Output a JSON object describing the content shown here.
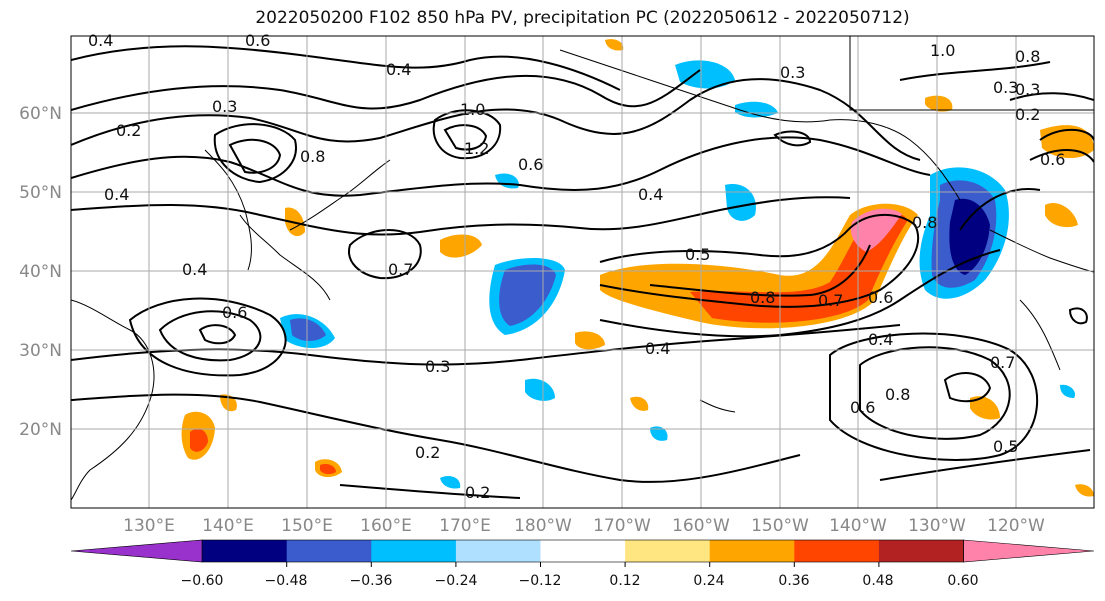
{
  "title": "2022050200 F102 850 hPa PV, precipitation PC (2022050612 - 2022050712)",
  "map": {
    "lat_ticks": [
      "60°N",
      "50°N",
      "40°N",
      "30°N",
      "20°N"
    ],
    "lon_ticks": [
      "130°E",
      "140°E",
      "150°E",
      "160°E",
      "170°E",
      "180°W",
      "170°W",
      "160°W",
      "150°W",
      "140°W",
      "130°W",
      "120°W"
    ],
    "contour_labels": [
      "0.4",
      "0.6",
      "0.4",
      "0.3",
      "0.2",
      "0.4",
      "1.0",
      "1.2",
      "0.6",
      "0.3",
      "0.4",
      "1.0",
      "0.8",
      "0.3",
      "0.2",
      "0.8",
      "0.7",
      "0.4",
      "0.5",
      "0.8",
      "0.7",
      "0.6",
      "0.4",
      "0.3",
      "0.2",
      "0.3",
      "0.4",
      "0.8",
      "0.6",
      "0.8",
      "0.5",
      "0.7",
      "0.6",
      "0.2",
      "0.6"
    ]
  },
  "colorbar": {
    "ticks": [
      "−0.60",
      "−0.48",
      "−0.36",
      "−0.24",
      "−0.12",
      "0.12",
      "0.24",
      "0.36",
      "0.48",
      "0.60"
    ],
    "colors": [
      "#9932cc",
      "#000080",
      "#3a5ccc",
      "#00bfff",
      "#b0e0ff",
      "#ffffff",
      "#ffe680",
      "#ffa500",
      "#ff4500",
      "#b22222",
      "#ff82ab"
    ]
  }
}
